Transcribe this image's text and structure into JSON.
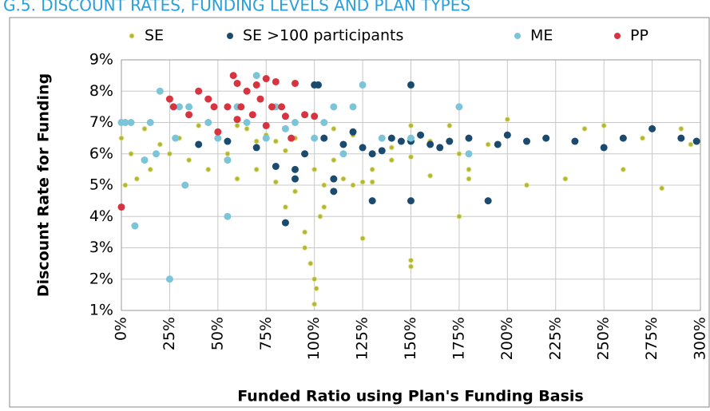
{
  "chart_data": {
    "type": "scatter",
    "title": "G.5. DISCOUNT RATES, FUNDING LEVELS AND PLAN TYPES",
    "x_label": "Funded Ratio using Plan's Funding Basis",
    "y_label": "Discount Rate for Funding",
    "xlim": [
      0,
      300
    ],
    "ylim": [
      1,
      9
    ],
    "xticks": [
      {
        "value": 0,
        "label": "0%"
      },
      {
        "value": 25,
        "label": "25%"
      },
      {
        "value": 50,
        "label": "50%"
      },
      {
        "value": 75,
        "label": "75%"
      },
      {
        "value": 100,
        "label": "100%"
      },
      {
        "value": 125,
        "label": "125%"
      },
      {
        "value": 150,
        "label": "150%"
      },
      {
        "value": 175,
        "label": "175%"
      },
      {
        "value": 200,
        "label": "200%"
      },
      {
        "value": 225,
        "label": "225%"
      },
      {
        "value": 250,
        "label": "250%"
      },
      {
        "value": 275,
        "label": "275%"
      },
      {
        "value": 300,
        "label": "300%"
      }
    ],
    "yticks": [
      {
        "value": 1,
        "label": "1%"
      },
      {
        "value": 2,
        "label": "2%"
      },
      {
        "value": 3,
        "label": "3%"
      },
      {
        "value": 4,
        "label": "4%"
      },
      {
        "value": 5,
        "label": "5%"
      },
      {
        "value": 6,
        "label": "6%"
      },
      {
        "value": 7,
        "label": "7%"
      },
      {
        "value": 8,
        "label": "8%"
      },
      {
        "value": 9,
        "label": "9%"
      }
    ],
    "grid": true,
    "legend": "top",
    "series": [
      {
        "name": "SE",
        "color": "#b3b630",
        "x": [
          0,
          2,
          5,
          8,
          12,
          15,
          20,
          25,
          30,
          35,
          40,
          45,
          50,
          55,
          60,
          65,
          70,
          75,
          80,
          85,
          90,
          95,
          98,
          100,
          100,
          101,
          103,
          105,
          110,
          115,
          120,
          125,
          130,
          140,
          150,
          150,
          160,
          170,
          175,
          180,
          190,
          200,
          210,
          220,
          230,
          240,
          250,
          260,
          270,
          280,
          290,
          295,
          60,
          80,
          100,
          120,
          140,
          160,
          180,
          200,
          70,
          90,
          110,
          130,
          150,
          85,
          95,
          105,
          125,
          150,
          175
        ],
        "values": [
          6.5,
          5,
          6,
          5.2,
          6.8,
          5.5,
          6.3,
          6,
          6.5,
          5.8,
          6.9,
          5.5,
          6.5,
          6,
          5.2,
          6.8,
          5.5,
          6.6,
          5.1,
          4.3,
          6.5,
          3.5,
          2.5,
          1.2,
          2,
          1.7,
          4,
          5,
          6.8,
          5.2,
          6.6,
          3.3,
          5.5,
          6.2,
          2.4,
          2.6,
          5.3,
          6.9,
          4,
          5.5,
          6.3,
          7.1,
          5,
          6.5,
          5.2,
          6.8,
          6.9,
          5.5,
          6.5,
          4.9,
          6.8,
          6.3,
          6.9,
          6.4,
          5.5,
          5,
          5.8,
          6.4,
          5.2,
          6.6,
          6.4,
          4.8,
          5.8,
          5.1,
          6.9,
          6.1,
          3.0,
          4.3,
          5.1,
          5.9,
          6.0
        ]
      },
      {
        "name": "SE >100 participants",
        "color": "#1a4b6e",
        "x": [
          40,
          55,
          70,
          80,
          85,
          90,
          95,
          100,
          105,
          110,
          115,
          120,
          125,
          130,
          135,
          140,
          145,
          150,
          150,
          155,
          160,
          165,
          170,
          180,
          190,
          195,
          200,
          210,
          220,
          235,
          250,
          260,
          275,
          290,
          298,
          90,
          110,
          130,
          150,
          102
        ],
        "values": [
          6.3,
          6.4,
          6.2,
          5.6,
          3.8,
          5.2,
          6.0,
          8.2,
          6.5,
          4.8,
          6.3,
          6.7,
          6.2,
          4.5,
          6.1,
          6.5,
          6.4,
          8.2,
          4.5,
          6.6,
          6.3,
          6.2,
          6.4,
          6.5,
          4.5,
          6.3,
          6.6,
          6.4,
          6.5,
          6.4,
          6.2,
          6.5,
          6.8,
          6.5,
          6.4,
          5.5,
          5.2,
          6.0,
          6.4,
          8.2
        ]
      },
      {
        "name": "ME",
        "color": "#7cc5d8",
        "x": [
          0,
          2,
          5,
          7,
          12,
          15,
          18,
          20,
          25,
          28,
          30,
          33,
          35,
          40,
          45,
          50,
          55,
          60,
          65,
          70,
          75,
          80,
          90,
          100,
          110,
          115,
          120,
          125,
          135,
          150,
          175,
          180,
          55,
          85,
          105
        ],
        "values": [
          7,
          7,
          7,
          3.7,
          5.8,
          7,
          6,
          8,
          2,
          6.5,
          7.5,
          5,
          7.5,
          8,
          7,
          6.5,
          4,
          7.5,
          7,
          8.5,
          6.5,
          7.5,
          7,
          6.5,
          7.5,
          6,
          7.5,
          8.2,
          6.5,
          6.5,
          7.5,
          6,
          5.8,
          6.8,
          7
        ]
      },
      {
        "name": "PP",
        "color": "#d7343f",
        "x": [
          0,
          25,
          27,
          35,
          40,
          45,
          50,
          55,
          58,
          60,
          62,
          65,
          68,
          70,
          72,
          75,
          78,
          80,
          83,
          85,
          88,
          90,
          95,
          100,
          48,
          60,
          75
        ],
        "values": [
          4.3,
          7.75,
          7.5,
          7.25,
          8,
          7.75,
          6.7,
          7.5,
          8.5,
          8.25,
          7.5,
          8,
          7.25,
          8.2,
          7.75,
          8.4,
          7.5,
          8.3,
          7.5,
          7.2,
          6.5,
          8.25,
          7.25,
          7.2,
          7.5,
          7.1,
          6.9
        ]
      }
    ]
  }
}
